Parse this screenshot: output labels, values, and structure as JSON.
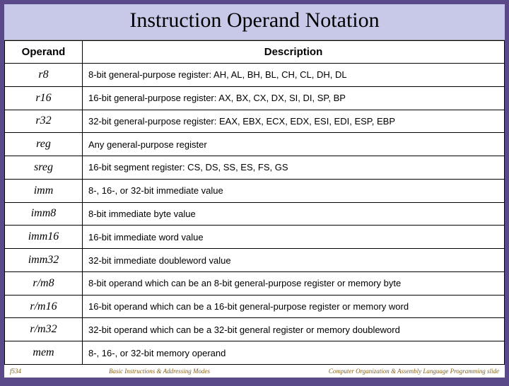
{
  "title": "Instruction Operand Notation",
  "headers": {
    "operand": "Operand",
    "description": "Description"
  },
  "rows": [
    {
      "op": "r8",
      "desc": "8-bit general-purpose register: AH, AL, BH, BL, CH, CL, DH, DL"
    },
    {
      "op": "r16",
      "desc": "16-bit general-purpose register: AX, BX, CX, DX, SI, DI, SP, BP"
    },
    {
      "op": "r32",
      "desc": "32-bit general-purpose register: EAX, EBX, ECX, EDX, ESI, EDI, ESP, EBP"
    },
    {
      "op": "reg",
      "desc": "Any general-purpose register"
    },
    {
      "op": "sreg",
      "desc": "16-bit segment register: CS, DS, SS, ES, FS, GS"
    },
    {
      "op": "imm",
      "desc": "8-, 16-, or 32-bit immediate value"
    },
    {
      "op": "imm8",
      "desc": "8-bit immediate byte value"
    },
    {
      "op": "imm16",
      "desc": "16-bit immediate word value"
    },
    {
      "op": "imm32",
      "desc": "32-bit immediate doubleword value"
    },
    {
      "op": "r/m8",
      "desc": "8-bit operand which can be an 8-bit general-purpose register or memory byte"
    },
    {
      "op": "r/m16",
      "desc": "16-bit operand which can be a 16-bit general-purpose register or memory word"
    },
    {
      "op": "r/m32",
      "desc": "32-bit operand which can be a 32-bit general register or memory doubleword"
    },
    {
      "op": "mem",
      "desc": "8-, 16-, or 32-bit memory operand"
    }
  ],
  "footer": {
    "left": "f534",
    "center": "Basic Instructions & Addressing Modes",
    "right": "Computer Organization & Assembly Language Programming slide"
  },
  "colors": {
    "slide_border": "#5b4a8a",
    "title_bg": "#c8c8e8",
    "footer_text": "#806020"
  }
}
